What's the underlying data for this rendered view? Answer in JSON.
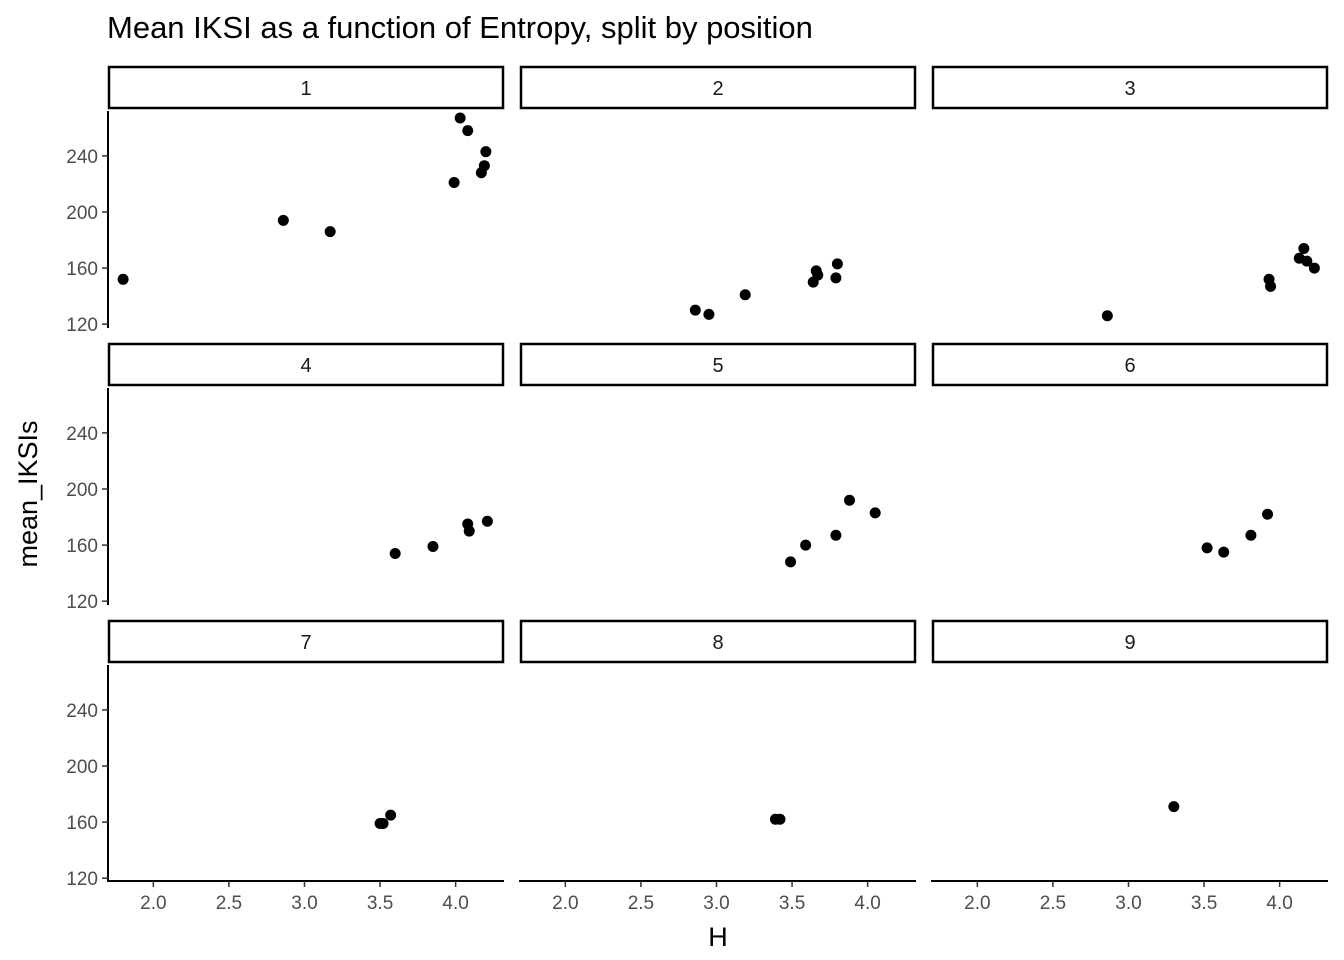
{
  "chart_data": {
    "type": "scatter",
    "title": "Mean IKSI as a function of Entropy, split by position",
    "xlabel": "H",
    "ylabel": "mean_IKSIs",
    "xlim": [
      1.7,
      4.32
    ],
    "ylim": [
      118,
      272
    ],
    "x_ticks": [
      2.0,
      2.5,
      3.0,
      3.5,
      4.0
    ],
    "x_tick_labels": [
      "2.0",
      "2.5",
      "3.0",
      "3.5",
      "4.0"
    ],
    "y_ticks": [
      120,
      160,
      200,
      240
    ],
    "y_tick_labels": [
      "120",
      "160",
      "200",
      "240"
    ],
    "grid": false,
    "legend": "none",
    "point_color": "#000000",
    "facets": [
      {
        "label": "1",
        "points": [
          [
            1.8,
            152
          ],
          [
            2.86,
            194
          ],
          [
            3.17,
            186
          ],
          [
            3.99,
            221
          ],
          [
            4.03,
            267
          ],
          [
            4.08,
            258
          ],
          [
            4.17,
            228
          ],
          [
            4.19,
            233
          ],
          [
            4.2,
            243
          ]
        ]
      },
      {
        "label": "2",
        "points": [
          [
            2.86,
            130
          ],
          [
            2.95,
            127
          ],
          [
            3.19,
            141
          ],
          [
            3.64,
            150
          ],
          [
            3.66,
            158
          ],
          [
            3.67,
            155
          ],
          [
            3.79,
            153
          ],
          [
            3.8,
            163
          ]
        ]
      },
      {
        "label": "3",
        "points": [
          [
            2.86,
            126
          ],
          [
            3.93,
            152
          ],
          [
            3.94,
            147
          ],
          [
            4.13,
            167
          ],
          [
            4.16,
            174
          ],
          [
            4.18,
            165
          ],
          [
            4.23,
            160
          ]
        ]
      },
      {
        "label": "4",
        "points": [
          [
            3.6,
            154
          ],
          [
            3.85,
            159
          ],
          [
            4.08,
            175
          ],
          [
            4.09,
            170
          ],
          [
            4.21,
            177
          ]
        ]
      },
      {
        "label": "5",
        "points": [
          [
            3.49,
            148
          ],
          [
            3.59,
            160
          ],
          [
            3.79,
            167
          ],
          [
            3.88,
            192
          ],
          [
            4.05,
            183
          ]
        ]
      },
      {
        "label": "6",
        "points": [
          [
            3.52,
            158
          ],
          [
            3.63,
            155
          ],
          [
            3.81,
            167
          ],
          [
            3.92,
            182
          ]
        ]
      },
      {
        "label": "7",
        "points": [
          [
            3.5,
            159
          ],
          [
            3.52,
            159
          ],
          [
            3.57,
            165
          ]
        ]
      },
      {
        "label": "8",
        "points": [
          [
            3.39,
            162
          ],
          [
            3.42,
            162
          ]
        ]
      },
      {
        "label": "9",
        "points": [
          [
            3.3,
            171
          ]
        ]
      }
    ]
  }
}
